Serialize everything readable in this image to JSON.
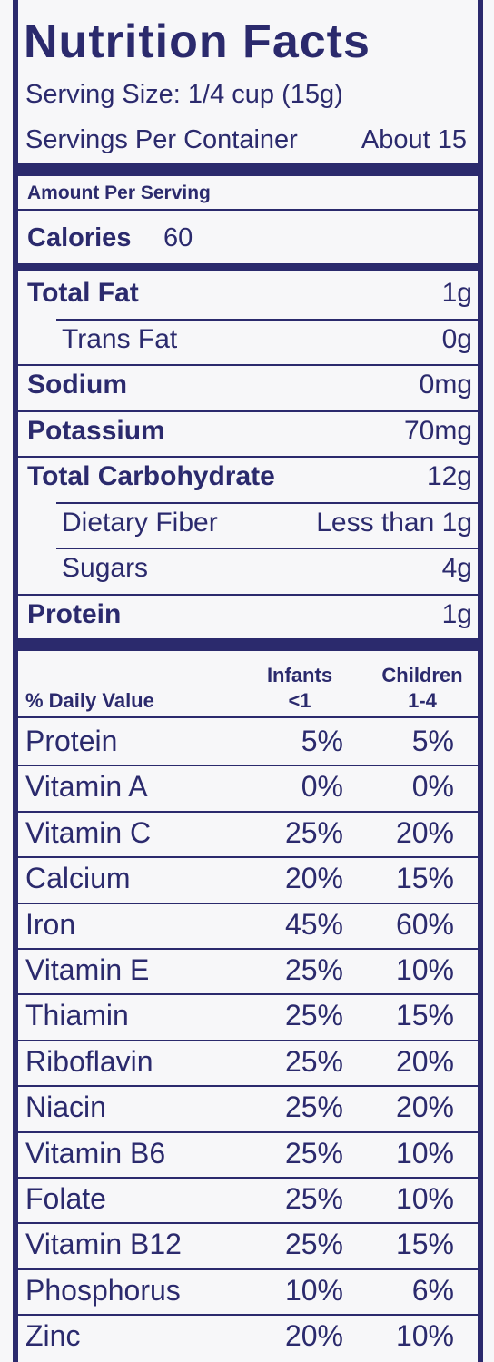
{
  "header": {
    "title": "Nutrition Facts",
    "serving_size": "Serving Size: 1/4 cup (15g)",
    "servings_per_container": "Servings Per Container",
    "servings_value": "About 15"
  },
  "amount_per_serving": "Amount Per Serving",
  "calories": {
    "label": "Calories",
    "value": "60"
  },
  "nutrients": [
    {
      "name": "Total Fat",
      "value": "1g",
      "bold": true,
      "indent": false
    },
    {
      "name": "Trans Fat",
      "value": "0g",
      "bold": false,
      "indent": true
    },
    {
      "name": "Sodium",
      "value": "0mg",
      "bold": true,
      "indent": false
    },
    {
      "name": "Potassium",
      "value": "70mg",
      "bold": true,
      "indent": false
    },
    {
      "name": "Total Carbohydrate",
      "value": "12g",
      "bold": true,
      "indent": false
    },
    {
      "name": "Dietary Fiber",
      "value": "Less than 1g",
      "bold": false,
      "indent": true
    },
    {
      "name": "Sugars",
      "value": "4g",
      "bold": false,
      "indent": true
    },
    {
      "name": "Protein",
      "value": "1g",
      "bold": true,
      "indent": false
    }
  ],
  "daily_value": {
    "label": "% Daily Value",
    "columns": [
      {
        "top": "Infants",
        "bottom": "<1"
      },
      {
        "top": "Children",
        "bottom": "1-4"
      }
    ],
    "rows": [
      [
        "Protein",
        "5%",
        "5%"
      ],
      [
        "Vitamin A",
        "0%",
        "0%"
      ],
      [
        "Vitamin C",
        "25%",
        "20%"
      ],
      [
        "Calcium",
        "20%",
        "15%"
      ],
      [
        "Iron",
        "45%",
        "60%"
      ],
      [
        "Vitamin E",
        "25%",
        "10%"
      ],
      [
        "Thiamin",
        "25%",
        "15%"
      ],
      [
        "Riboflavin",
        "25%",
        "20%"
      ],
      [
        "Niacin",
        "25%",
        "20%"
      ],
      [
        "Vitamin B6",
        "25%",
        "10%"
      ],
      [
        "Folate",
        "25%",
        "10%"
      ],
      [
        "Vitamin B12",
        "25%",
        "15%"
      ],
      [
        "Phosphorus",
        "10%",
        "6%"
      ],
      [
        "Zinc",
        "20%",
        "10%"
      ]
    ]
  }
}
